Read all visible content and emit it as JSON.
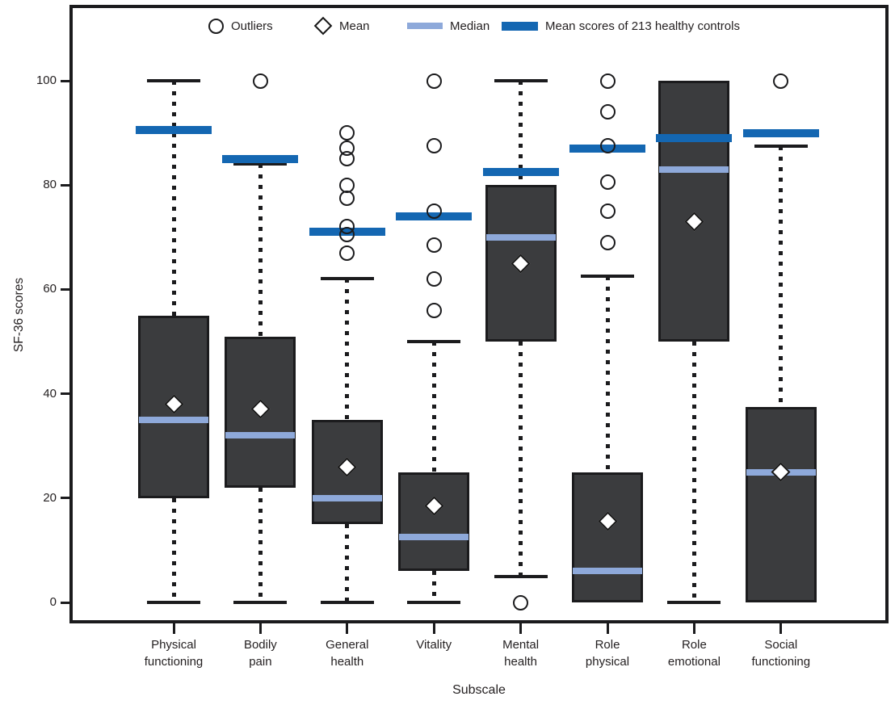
{
  "legend": {
    "outliers": "Outliers",
    "mean": "Mean",
    "median": "Median",
    "controls": "Mean scores of  213 healthy controls"
  },
  "colors": {
    "box_fill": "#3b3c3e",
    "box_border": "#1b1b1d",
    "median_line": "#8ea9da",
    "controls_bar": "#1467b2",
    "text": "#231f20"
  },
  "chart_data": {
    "type": "boxplot",
    "title": "",
    "xlabel": "Subscale",
    "ylabel": "SF-36 scores",
    "ylim": [
      -4,
      114
    ],
    "yticks": [
      0,
      20,
      40,
      60,
      80,
      100
    ],
    "grid": false,
    "legend_position": "top",
    "categories": [
      "Physical functioning",
      "Bodily pain",
      "General health",
      "Vitality",
      "Mental health",
      "Role physical",
      "Role emotional",
      "Social functioning"
    ],
    "series": [
      {
        "name": "Physical functioning",
        "q1": 20,
        "median": 35,
        "q3": 55,
        "mean": 38,
        "whisker_low": 0,
        "whisker_high": 100,
        "healthy_control_mean": 90.5,
        "outliers": []
      },
      {
        "name": "Bodily pain",
        "q1": 22,
        "median": 32,
        "q3": 51,
        "mean": 37,
        "whisker_low": 0,
        "whisker_high": 84,
        "healthy_control_mean": 85,
        "outliers": [
          100
        ]
      },
      {
        "name": "General health",
        "q1": 15,
        "median": 20,
        "q3": 35,
        "mean": 26,
        "whisker_low": 0,
        "whisker_high": 62,
        "healthy_control_mean": 71,
        "outliers": [
          90,
          87,
          85,
          80,
          77.5,
          72,
          70.5,
          67
        ]
      },
      {
        "name": "Vitality",
        "q1": 6,
        "median": 12.5,
        "q3": 25,
        "mean": 18.5,
        "whisker_low": 0,
        "whisker_high": 50,
        "healthy_control_mean": 74,
        "outliers": [
          100,
          87.5,
          75,
          68.5,
          62,
          56
        ]
      },
      {
        "name": "Mental health",
        "q1": 50,
        "median": 70,
        "q3": 80,
        "mean": 65,
        "whisker_low": 5,
        "whisker_high": 100,
        "healthy_control_mean": 82.5,
        "outliers": [
          0
        ]
      },
      {
        "name": "Role physical",
        "q1": 0,
        "median": 6,
        "q3": 25,
        "mean": 15.5,
        "whisker_low": null,
        "whisker_high": 62.5,
        "healthy_control_mean": 87,
        "outliers": [
          100,
          94,
          87.5,
          80.5,
          75,
          69
        ]
      },
      {
        "name": "Role emotional",
        "q1": 50,
        "median": 83,
        "q3": 100,
        "mean": 73,
        "whisker_low": 0,
        "whisker_high": null,
        "healthy_control_mean": 89,
        "outliers": []
      },
      {
        "name": "Social functioning",
        "q1": 0,
        "median": 25,
        "q3": 37.5,
        "mean": 25,
        "whisker_low": null,
        "whisker_high": 87.5,
        "healthy_control_mean": 90,
        "outliers": [
          100
        ]
      }
    ]
  }
}
